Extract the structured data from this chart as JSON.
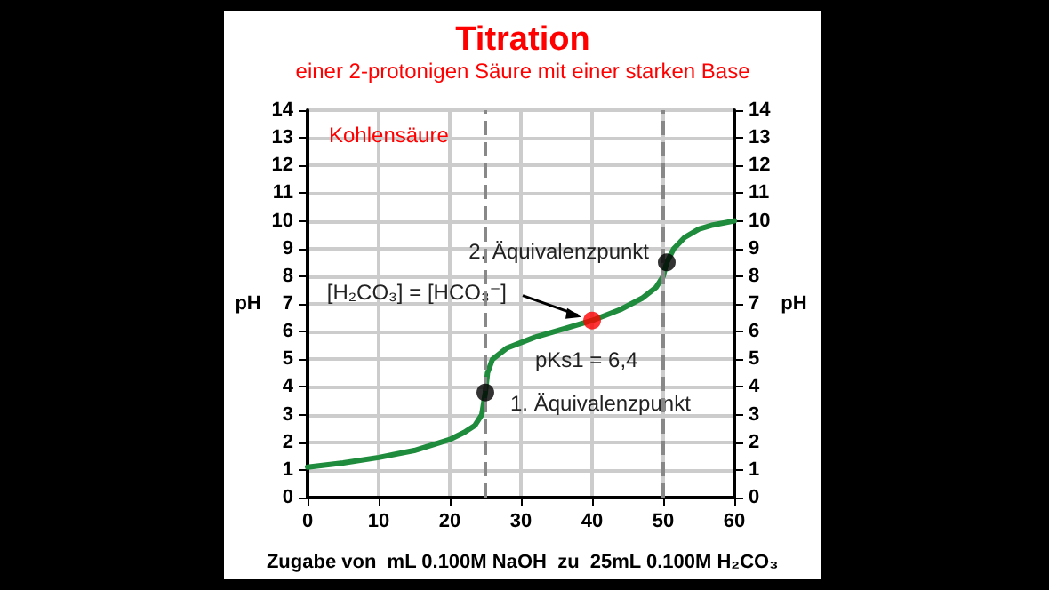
{
  "chart_data": {
    "type": "line",
    "title": "Titration",
    "subtitle": "einer 2-protonigen Säure mit einer starken Base",
    "xlabel": "Zugabe von  mL 0.100M NaOH  zu  25mL 0.100M H₂CO₃",
    "ylabel": "pH",
    "y2label": "pH",
    "series": [
      {
        "color": "#1e8c3c",
        "marker": "none",
        "x": [
          0,
          5,
          10,
          15,
          20,
          22,
          23.5,
          24.5,
          25,
          25.3,
          26,
          28,
          32,
          36,
          40,
          44,
          47,
          49,
          50,
          50.5,
          51.5,
          53,
          55,
          57,
          60
        ],
        "values": [
          1.1,
          1.25,
          1.45,
          1.7,
          2.1,
          2.35,
          2.6,
          3.0,
          3.8,
          4.5,
          5.0,
          5.4,
          5.8,
          6.1,
          6.4,
          6.8,
          7.2,
          7.6,
          8.0,
          8.5,
          9.0,
          9.4,
          9.7,
          9.85,
          10.0
        ]
      },
      {
        "type": "scatter",
        "marker": "circle",
        "x": [
          25,
          40,
          50.5
        ],
        "values": [
          3.8,
          6.4,
          8.5
        ],
        "colors": [
          "#000000",
          "#ff0000",
          "#000000"
        ]
      }
    ],
    "xlim": [
      0,
      60
    ],
    "xticks": [
      0,
      10,
      20,
      30,
      40,
      50,
      60
    ],
    "ylim": [
      0,
      14
    ],
    "yticks": [
      0,
      1,
      2,
      3,
      4,
      5,
      6,
      7,
      8,
      9,
      10,
      11,
      12,
      13,
      14
    ],
    "y2lim": [
      0,
      14
    ],
    "y2ticks": [
      0,
      1,
      2,
      3,
      4,
      5,
      6,
      7,
      8,
      9,
      10,
      11,
      12,
      13,
      14
    ],
    "ref_lines": [
      {
        "axis": "x",
        "value": 25,
        "line_style": "dashed",
        "color": "#888888"
      },
      {
        "axis": "x",
        "value": 50,
        "line_style": "dashed",
        "color": "#888888"
      }
    ],
    "grid": true,
    "annotations": [
      "Kohlensäure",
      {
        "text": "2. Äquivalenzpunkt",
        "x": 50.5,
        "y": 8.5
      },
      {
        "text": "[H₂CO₃] = [HCO₃⁻]",
        "x": 40,
        "y": 6.4
      },
      {
        "text": "pKs1 = 6,4",
        "x": 40,
        "y": 6.4
      },
      {
        "text": "1. Äquivalenzpunkt",
        "x": 25,
        "y": 3.8
      }
    ]
  }
}
